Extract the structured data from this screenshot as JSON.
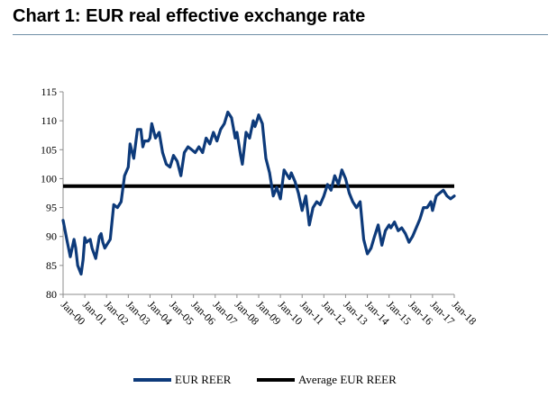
{
  "title": "Chart 1: EUR real effective exchange rate",
  "colors": {
    "reer": "#0d3a7a",
    "avg": "#000000",
    "rule": "#6f8fa6"
  },
  "chart_data": {
    "type": "line",
    "title": "Chart 1: EUR real effective exchange rate",
    "xlabel": "",
    "ylabel": "",
    "ylim": [
      80,
      115
    ],
    "yticks": [
      80,
      85,
      90,
      95,
      100,
      105,
      110,
      115
    ],
    "xticks": [
      "Jan-00",
      "Jan-01",
      "Jan-02",
      "Jan-03",
      "Jan-04",
      "Jan-05",
      "Jan-06",
      "Jan-07",
      "Jan-08",
      "Jan-09",
      "Jan-10",
      "Jan-11",
      "Jan-12",
      "Jan-13",
      "Jan-14",
      "Jan-15",
      "Jan-16",
      "Jan-17",
      "Jan-18"
    ],
    "xlim": [
      2000.0,
      2018.0
    ],
    "grid": false,
    "legend_position": "bottom",
    "series": [
      {
        "name": "EUR REER",
        "x": [
          2000.0,
          2000.17,
          2000.33,
          2000.5,
          2000.58,
          2000.67,
          2000.83,
          2000.92,
          2001.0,
          2001.08,
          2001.25,
          2001.33,
          2001.5,
          2001.67,
          2001.75,
          2001.83,
          2001.92,
          2002.0,
          2002.17,
          2002.33,
          2002.5,
          2002.67,
          2002.83,
          2003.0,
          2003.08,
          2003.25,
          2003.42,
          2003.58,
          2003.67,
          2003.75,
          2003.92,
          2004.0,
          2004.08,
          2004.25,
          2004.42,
          2004.58,
          2004.75,
          2004.92,
          2005.08,
          2005.25,
          2005.42,
          2005.58,
          2005.75,
          2005.92,
          2006.08,
          2006.25,
          2006.42,
          2006.58,
          2006.75,
          2006.92,
          2007.08,
          2007.25,
          2007.42,
          2007.58,
          2007.75,
          2007.92,
          2008.0,
          2008.17,
          2008.25,
          2008.42,
          2008.58,
          2008.75,
          2008.83,
          2008.92,
          2009.0,
          2009.17,
          2009.33,
          2009.5,
          2009.67,
          2009.83,
          2010.0,
          2010.17,
          2010.33,
          2010.42,
          2010.5,
          2010.67,
          2010.83,
          2011.0,
          2011.17,
          2011.33,
          2011.5,
          2011.67,
          2011.83,
          2012.0,
          2012.17,
          2012.33,
          2012.5,
          2012.67,
          2012.83,
          2013.0,
          2013.17,
          2013.33,
          2013.5,
          2013.67,
          2013.83,
          2014.0,
          2014.17,
          2014.33,
          2014.5,
          2014.67,
          2014.83,
          2015.0,
          2015.08,
          2015.25,
          2015.42,
          2015.58,
          2015.75,
          2015.92,
          2016.08,
          2016.25,
          2016.42,
          2016.58,
          2016.75,
          2016.92,
          2017.0,
          2017.17,
          2017.33,
          2017.5,
          2017.67,
          2017.83,
          2018.0
        ],
        "values": [
          92.8,
          89.5,
          86.5,
          89.5,
          88.0,
          85.0,
          83.5,
          86.0,
          89.8,
          89.0,
          89.5,
          88.0,
          86.2,
          90.0,
          90.5,
          89.0,
          88.0,
          88.5,
          89.5,
          95.5,
          95.0,
          96.0,
          100.5,
          102.0,
          106.0,
          103.5,
          108.5,
          108.5,
          105.5,
          106.5,
          106.5,
          107.0,
          109.5,
          107.0,
          108.0,
          104.5,
          102.5,
          102.0,
          104.0,
          103.0,
          100.5,
          104.5,
          105.5,
          105.0,
          104.5,
          105.5,
          104.5,
          107.0,
          106.0,
          108.0,
          106.5,
          108.5,
          109.5,
          111.5,
          110.5,
          107.0,
          108.0,
          104.0,
          102.5,
          108.0,
          107.0,
          110.0,
          109.0,
          110.0,
          111.0,
          109.5,
          103.5,
          101.0,
          97.0,
          98.5,
          96.5,
          101.5,
          100.5,
          100.0,
          101.0,
          99.5,
          97.5,
          94.5,
          97.0,
          92.0,
          95.0,
          96.0,
          95.5,
          97.0,
          99.0,
          98.0,
          100.5,
          99.0,
          101.5,
          100.0,
          97.5,
          96.0,
          95.0,
          96.0,
          89.5,
          87.0,
          88.0,
          90.0,
          92.0,
          88.5,
          91.0,
          92.0,
          91.5,
          92.5,
          91.0,
          91.5,
          90.5,
          89.0,
          90.0,
          91.5,
          93.0,
          95.0,
          95.0,
          96.0,
          94.5,
          97.0,
          97.5,
          98.0,
          97.0,
          96.5,
          97.0
        ]
      },
      {
        "name": "Average EUR REER",
        "x": [
          2000.0,
          2018.0
        ],
        "values": [
          98.7,
          98.7
        ]
      }
    ]
  },
  "legend": {
    "reer_label": "EUR REER",
    "avg_label": "Average EUR REER"
  }
}
